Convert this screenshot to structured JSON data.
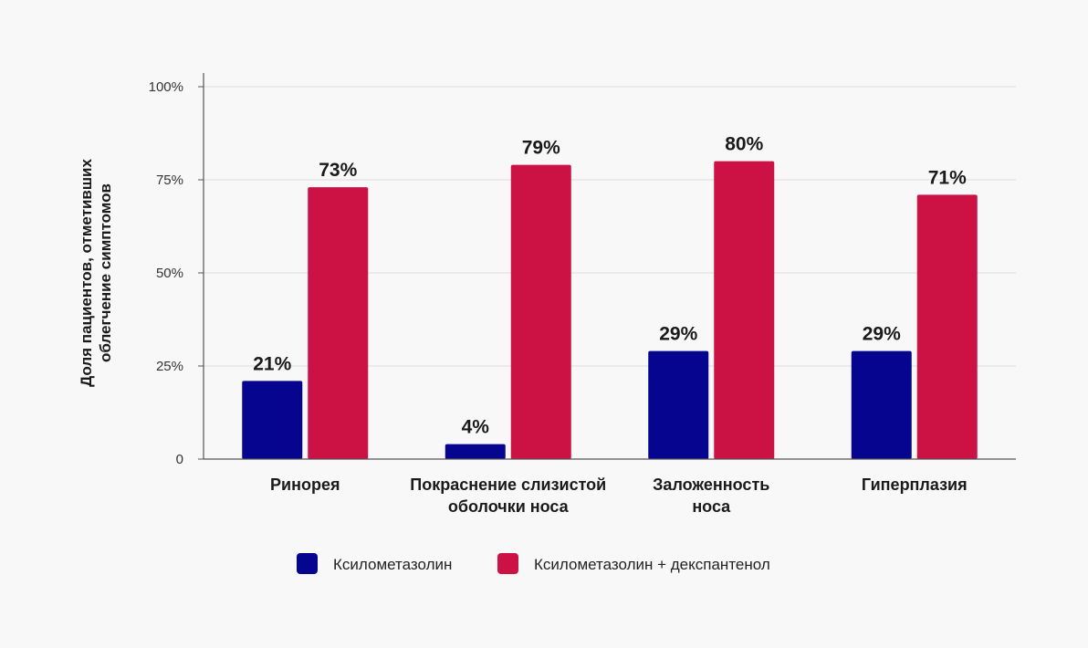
{
  "chart_data": {
    "type": "bar",
    "categories": [
      [
        "Ринорея"
      ],
      [
        "Покраснение слизистой",
        "оболочки носа"
      ],
      [
        "Заложенность",
        "носа"
      ],
      [
        "Гиперплазия"
      ]
    ],
    "series": [
      {
        "name": "Ксилометазолин",
        "color": "#05058f",
        "values": [
          21,
          4,
          29,
          29
        ],
        "labels": [
          "21%",
          "4%",
          "29%",
          "29%"
        ]
      },
      {
        "name": "Ксилометазолин + декспантенол",
        "color": "#cc1245",
        "values": [
          73,
          79,
          80,
          71
        ],
        "labels": [
          "73%",
          "79%",
          "80%",
          "71%"
        ]
      }
    ],
    "ylabel": [
      "Доля пациентов, отметивших",
      "облегчение симптомов"
    ],
    "ylim": [
      0,
      100
    ],
    "yticks": [
      {
        "value": 0,
        "label": "0"
      },
      {
        "value": 25,
        "label": "25%"
      },
      {
        "value": 50,
        "label": "50%"
      },
      {
        "value": 75,
        "label": "75%"
      },
      {
        "value": 100,
        "label": "100%"
      }
    ],
    "grid": true,
    "legend_position": "bottom"
  }
}
